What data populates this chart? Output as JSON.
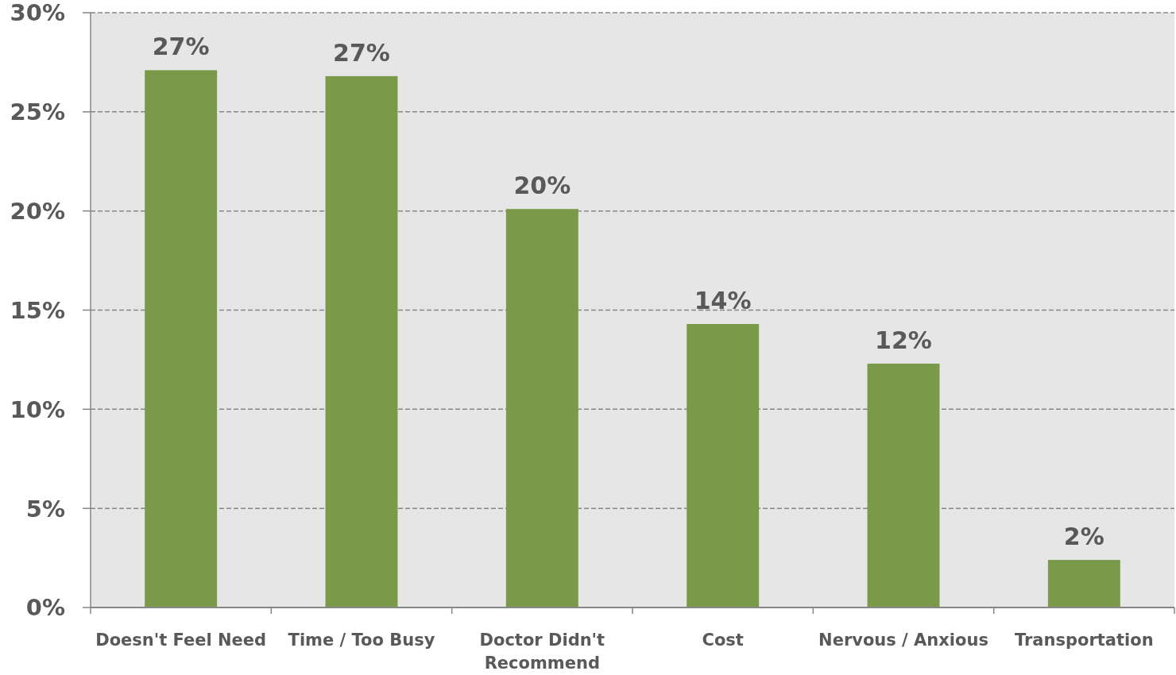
{
  "chart_data": {
    "type": "bar",
    "categories": [
      "Doesn't Feel Need",
      "Time / Too Busy",
      "Doctor Didn't Recommend",
      "Cost",
      "Nervous / Anxious",
      "Transportation"
    ],
    "values": [
      27.1,
      26.8,
      20.1,
      14.3,
      12.3,
      2.4
    ],
    "value_labels": [
      "27%",
      "27%",
      "20%",
      "14%",
      "12%",
      "2%"
    ],
    "color": "#7a9a4a",
    "ylim": [
      0,
      30
    ],
    "yticks": [
      {
        "value": 0,
        "label": "0%"
      },
      {
        "value": 5,
        "label": "5%"
      },
      {
        "value": 10,
        "label": "10%"
      },
      {
        "value": 15,
        "label": "15%"
      },
      {
        "value": 20,
        "label": "20%"
      },
      {
        "value": 25,
        "label": "25%"
      },
      {
        "value": 30,
        "label": "30%"
      }
    ],
    "grid": "y"
  }
}
